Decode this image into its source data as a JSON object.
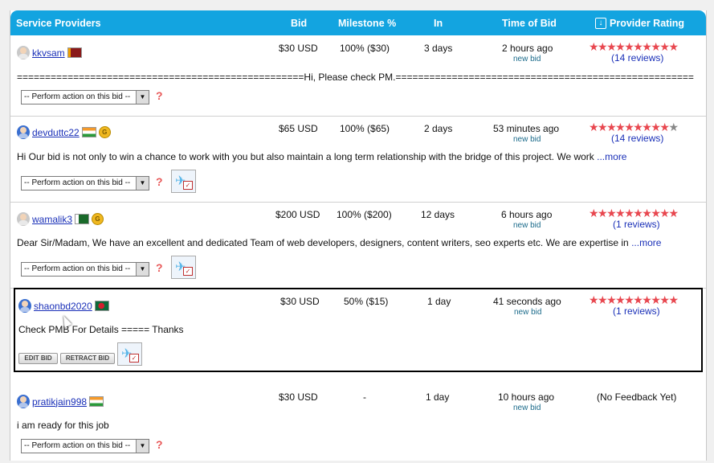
{
  "header": {
    "service_providers": "Service Providers",
    "bid": "Bid",
    "milestone": "Milestone %",
    "in": "In",
    "time_of_bid": "Time of Bid",
    "provider_rating": "Provider Rating"
  },
  "action_select": {
    "selected": "-- Perform action on this bid --"
  },
  "bids": [
    {
      "user": "kkvsam",
      "flag": "lk",
      "bid": "$30 USD",
      "milestone": "100% ($30)",
      "in": "3 days",
      "time": "2 hours ago",
      "tag": "new bid",
      "stars": 10,
      "reviews": "(14 reviews)",
      "desc": "===================================================Hi, Please check PM.====================================================="
    },
    {
      "user": "devduttc22",
      "flag": "in",
      "bid": "$65 USD",
      "milestone": "100% ($65)",
      "in": "2 days",
      "time": "53 minutes ago",
      "tag": "new bid",
      "stars": 9,
      "reviews": "(14 reviews)",
      "desc": "Hi Our bid is not only to win a chance to work with you but also maintain a long term relationship with the bridge of this project. We work ",
      "more": "...more"
    },
    {
      "user": "wamalik3",
      "flag": "pk",
      "bid": "$200 USD",
      "milestone": "100% ($200)",
      "in": "12 days",
      "time": "6 hours ago",
      "tag": "new bid",
      "stars": 10,
      "reviews": "(1 reviews)",
      "desc": "Dear Sir/Madam, We have an excellent and dedicated Team of web developers, designers, content writers, seo experts etc. We are expertise in ",
      "more": "...more"
    },
    {
      "user": "shaonbd2020",
      "flag": "bd",
      "bid": "$30 USD",
      "milestone": "50% ($15)",
      "in": "1 day",
      "time": "41 seconds ago",
      "tag": "new bid",
      "stars": 10,
      "reviews": "(1 reviews)",
      "desc": "Check PMB For Details ===== Thanks",
      "edit": "EDIT BID",
      "retract": "RETRACT BID"
    },
    {
      "user": "pratikjain998",
      "flag": "in",
      "bid": "$30 USD",
      "milestone": "-",
      "in": "1 day",
      "time": "10 hours ago",
      "tag": "new bid",
      "rating_text": "(No Feedback Yet)",
      "desc": "i am ready for this job"
    }
  ],
  "colors": {
    "header_bg": "#13a4e0",
    "link": "#1a30b8",
    "star": "#e8474f",
    "help": "#e85a5a"
  }
}
